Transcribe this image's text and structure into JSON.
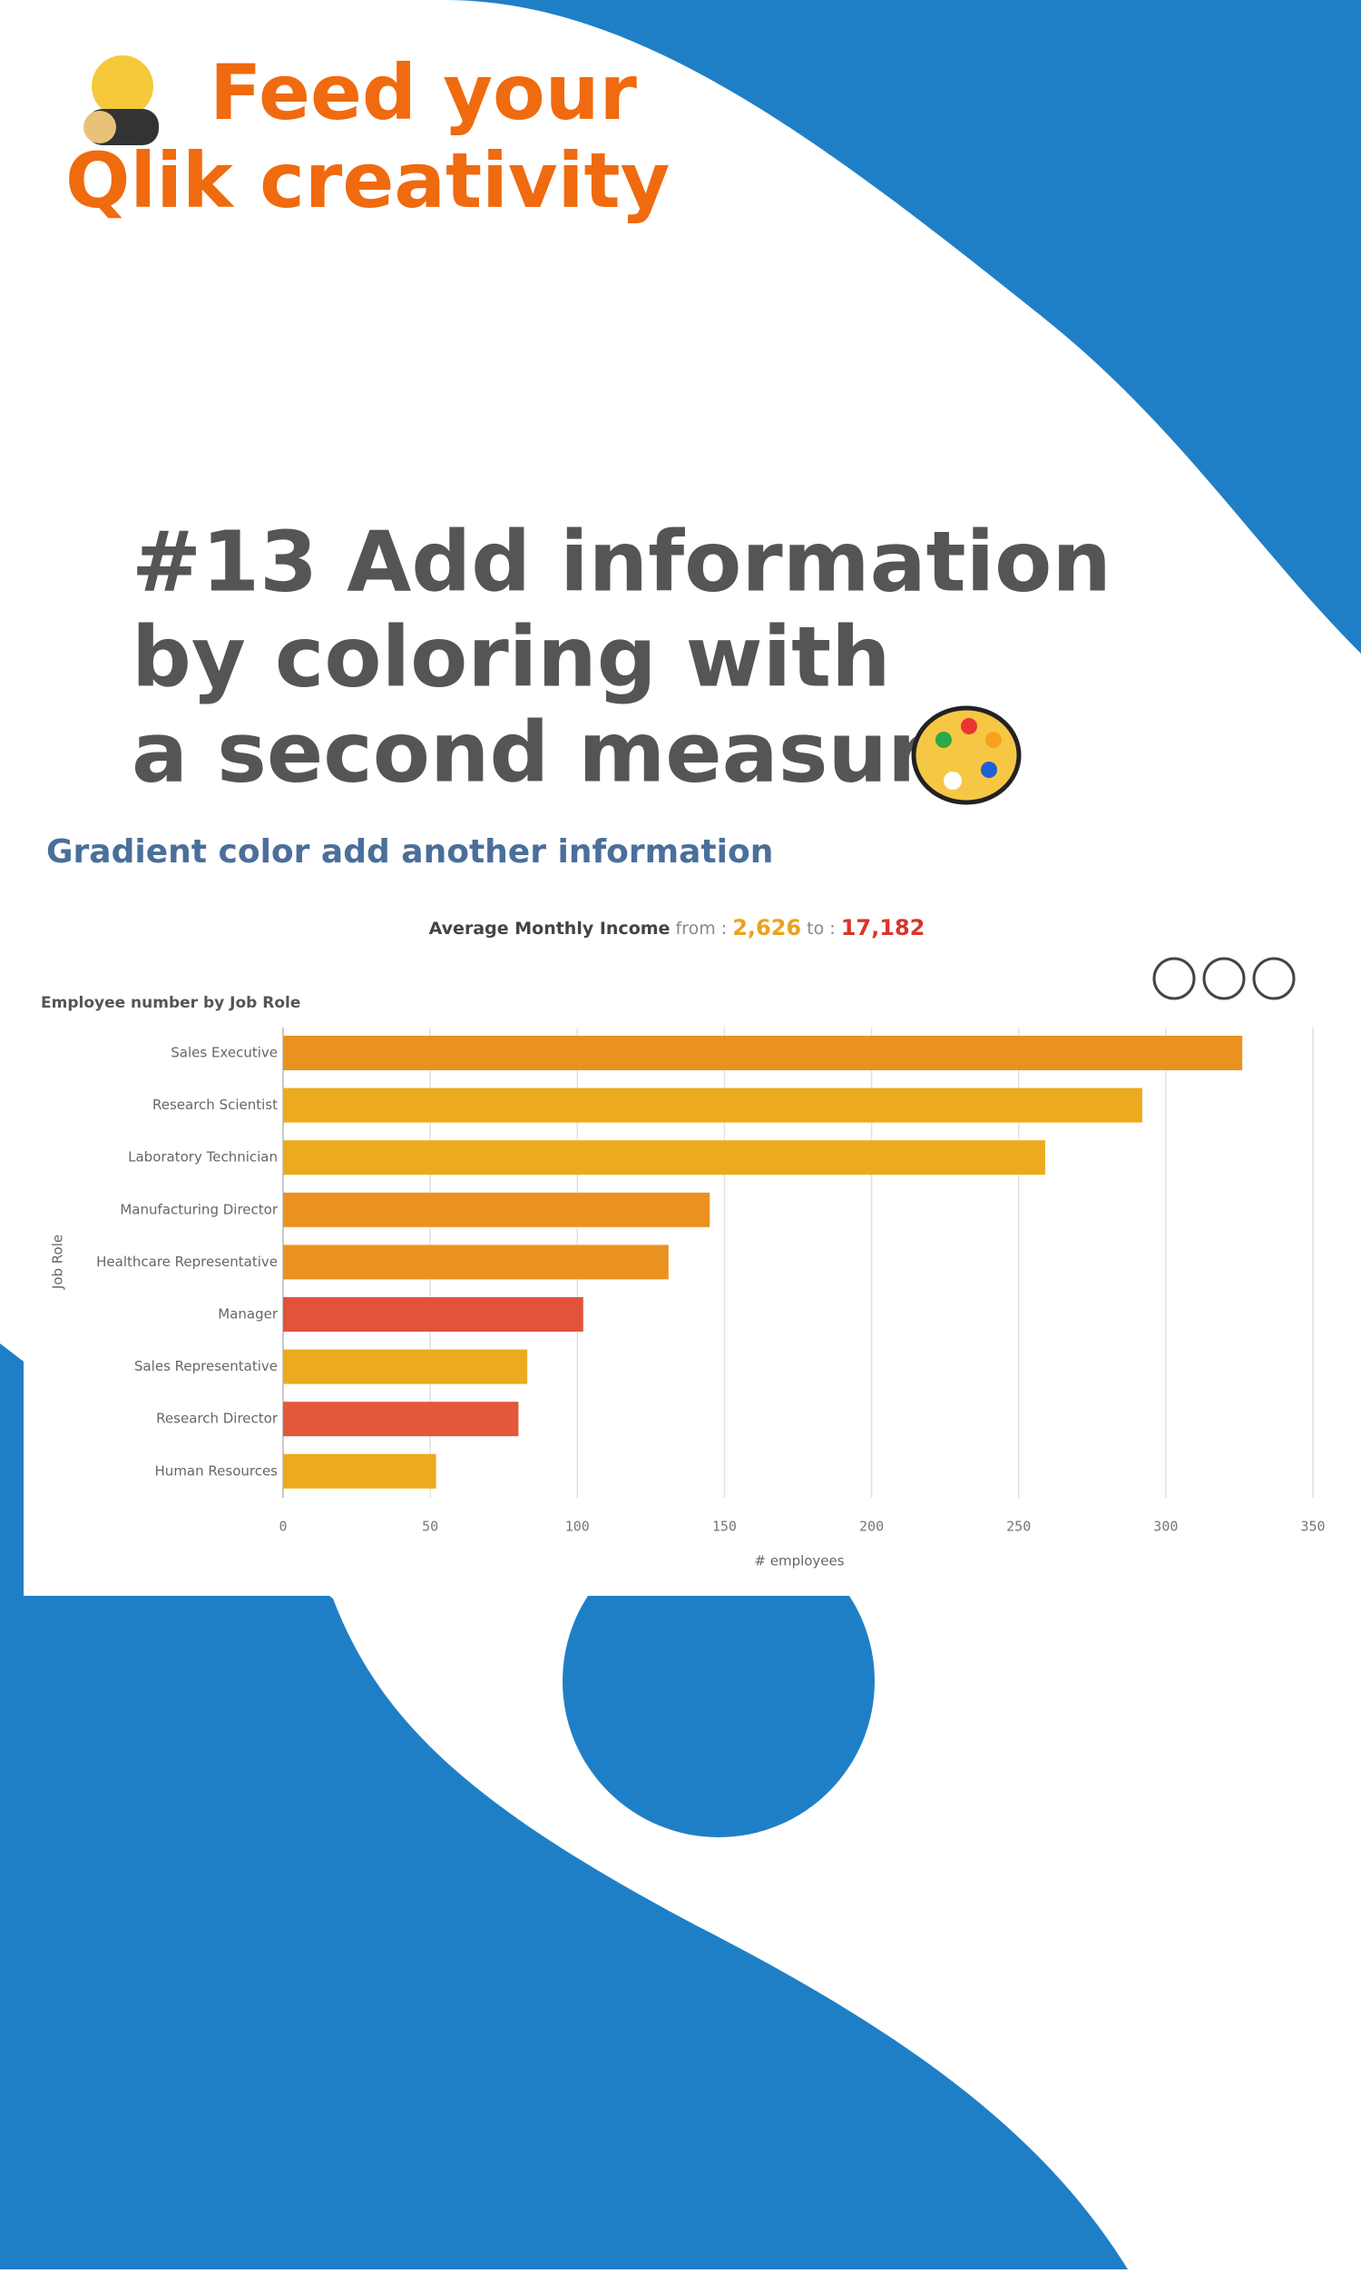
{
  "brand": [
    "Feed your",
    "Qlik creativity"
  ],
  "headline": [
    "#13 Add information",
    "by coloring with",
    "a second measure"
  ],
  "chart_data": {
    "type": "bar",
    "orientation": "horizontal",
    "title": "Gradient color add another information",
    "color_legend": {
      "title": "Average Monthly Income",
      "from_text": "from :",
      "from": "2,626",
      "to_text": "to :",
      "to": "17,182"
    },
    "subtitle": "Employee number by Job Role",
    "y_label": "Job Role",
    "x_label": "# employees",
    "categories": [
      "Sales Executive",
      "Research Scientist",
      "Laboratory Technician",
      "Manufacturing Director",
      "Healthcare Representative",
      "Manager",
      "Sales Representative",
      "Research Director",
      "Human Resources"
    ],
    "values": [
      326,
      292,
      259,
      145,
      131,
      102,
      83,
      80,
      52
    ],
    "colors": [
      "#ea9220",
      "#ecab1e",
      "#ecab1e",
      "#ea9220",
      "#ea9220",
      "#e2533a",
      "#ecab1e",
      "#e2583a",
      "#ecab1e"
    ],
    "xlim": [
      0,
      350
    ],
    "xticks": [
      0,
      50,
      100,
      150,
      200,
      250,
      300,
      350
    ],
    "grid": true
  }
}
